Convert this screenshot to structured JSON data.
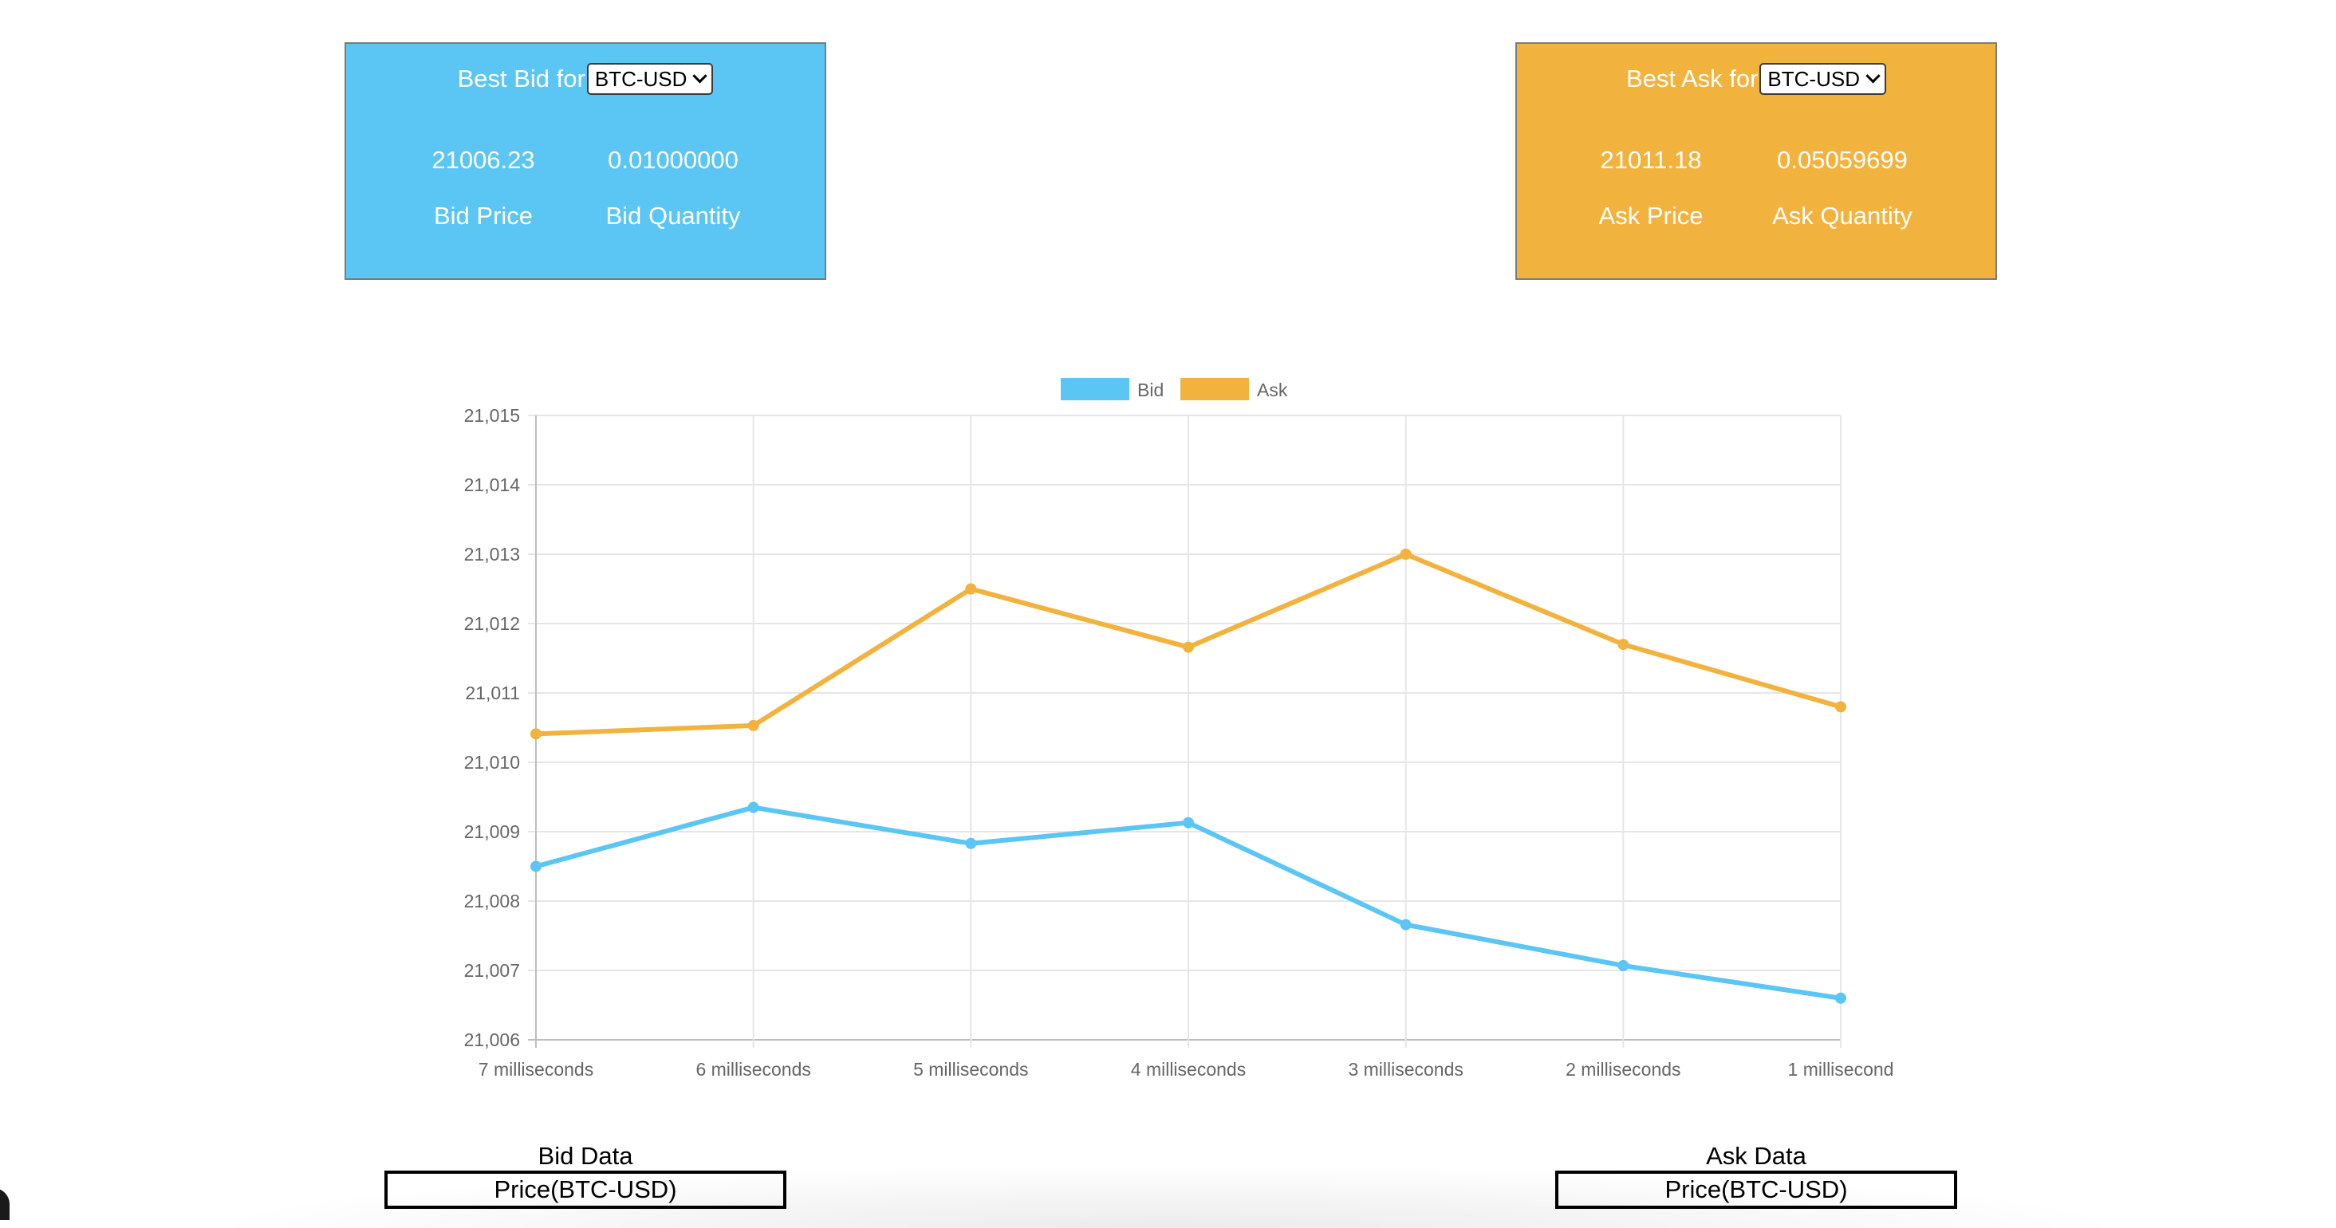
{
  "bid_card": {
    "title": "Best Bid for",
    "selected_pair": "BTC-USD",
    "price": "21006.23",
    "quantity": "0.01000000",
    "price_label": "Bid Price",
    "quantity_label": "Bid Quantity",
    "color": "#5bc5f4"
  },
  "ask_card": {
    "title": "Best Ask for",
    "selected_pair": "BTC-USD",
    "price": "21011.18",
    "quantity": "0.05059699",
    "price_label": "Ask Price",
    "quantity_label": "Ask Quantity",
    "color": "#f2b23e"
  },
  "chart_data": {
    "type": "line",
    "title": "",
    "xlabel": "",
    "ylabel": "",
    "categories": [
      "7 milliseconds",
      "6 milliseconds",
      "5 milliseconds",
      "4 milliseconds",
      "3 milliseconds",
      "2 milliseconds",
      "1 millisecond"
    ],
    "series": [
      {
        "name": "Bid",
        "color": "#5bc5f4",
        "values": [
          21008.5,
          21009.35,
          21008.83,
          21009.13,
          21007.66,
          21007.07,
          21006.6
        ]
      },
      {
        "name": "Ask",
        "color": "#f2b23e",
        "values": [
          21010.41,
          21010.53,
          21012.5,
          21011.66,
          21013.0,
          21011.7,
          21010.8
        ]
      }
    ],
    "ylim": [
      21006,
      21015
    ],
    "yticks": [
      "21,006",
      "21,007",
      "21,008",
      "21,009",
      "21,010",
      "21,011",
      "21,012",
      "21,013",
      "21,014",
      "21,015"
    ],
    "grid": true,
    "legend": "top-center"
  },
  "tables": {
    "bid_title": "Bid Data",
    "bid_header": "Price(BTC-USD)",
    "ask_title": "Ask Data",
    "ask_header": "Price(BTC-USD)"
  }
}
